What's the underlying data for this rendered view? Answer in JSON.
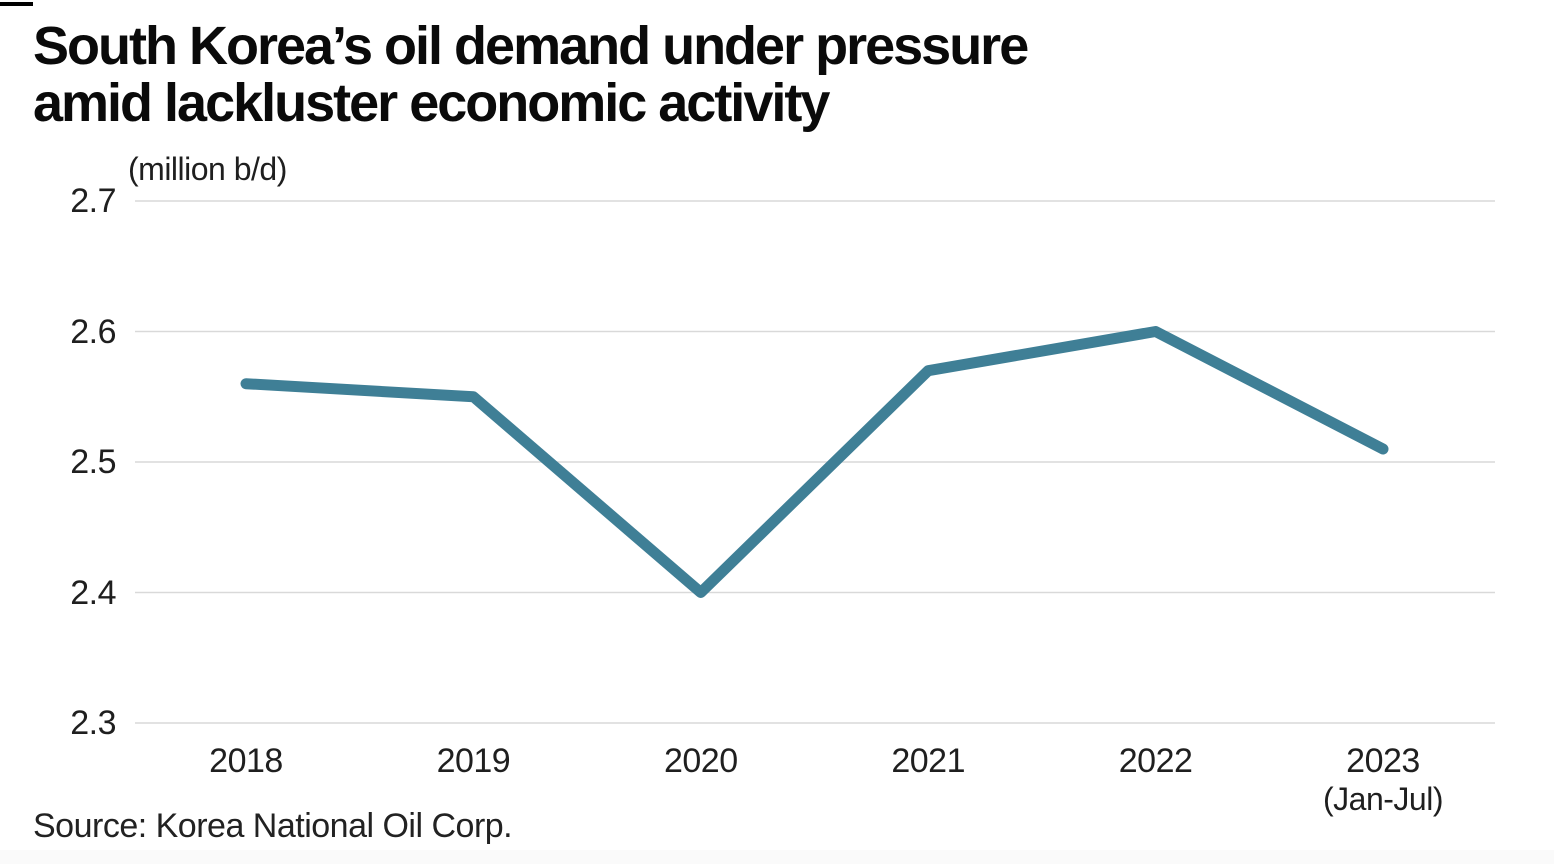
{
  "page": {
    "title": "South Korea’s oil demand under pressure\namid lackluster economic activity",
    "unit_label": "(million b/d)",
    "source": "Source: Korea National Oil Corp."
  },
  "chart_data": {
    "type": "line",
    "title": "South Korea's oil demand under pressure amid lackluster economic activity",
    "ylabel": "(million b/d)",
    "xlabel": "",
    "categories": [
      "2018",
      "2019",
      "2020",
      "2021",
      "2022",
      "2023"
    ],
    "x_sub_labels": [
      "",
      "",
      "",
      "",
      "",
      "(Jan-Jul)"
    ],
    "values": [
      2.56,
      2.55,
      2.4,
      2.57,
      2.6,
      2.51
    ],
    "ylim": [
      2.3,
      2.7
    ],
    "yticks": [
      "2.7",
      "2.6",
      "2.5",
      "2.4",
      "2.3"
    ],
    "grid": "horizontal",
    "legend": "none",
    "source": "Korea National Oil Corp.",
    "colors": {
      "line": "#3F7F96",
      "gridline": "#D9D9D9",
      "text": "#1F1F1F",
      "title": "#0A0A0A"
    }
  }
}
